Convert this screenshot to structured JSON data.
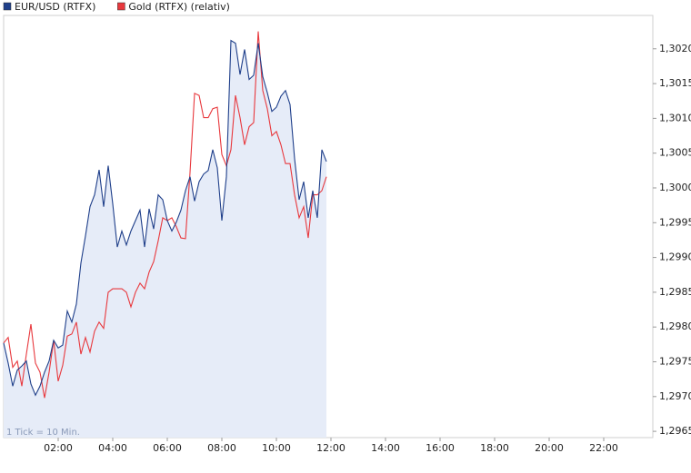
{
  "chart_data": {
    "type": "line",
    "annotation": "1 Tick = 10 Min.",
    "x": [
      0,
      10,
      20,
      30,
      40,
      50,
      60,
      70,
      80,
      90,
      100,
      110,
      120,
      130,
      140,
      150,
      160,
      170,
      180,
      190,
      200,
      210,
      220,
      230,
      240,
      250,
      260,
      270,
      280,
      290,
      300,
      310,
      320,
      330,
      340,
      350,
      360,
      370,
      380,
      390,
      400,
      410,
      420,
      430,
      440,
      450,
      460,
      470,
      480,
      490,
      500,
      510,
      520,
      530,
      540,
      550,
      560,
      570,
      580,
      590,
      600,
      610,
      620,
      630,
      640,
      650,
      660,
      670,
      680,
      690,
      700,
      710
    ],
    "xlim": [
      0,
      1428
    ],
    "xticks": [
      {
        "value": 120,
        "label": "02:00"
      },
      {
        "value": 240,
        "label": "04:00"
      },
      {
        "value": 360,
        "label": "06:00"
      },
      {
        "value": 480,
        "label": "08:00"
      },
      {
        "value": 600,
        "label": "10:00"
      },
      {
        "value": 720,
        "label": "12:00"
      },
      {
        "value": 840,
        "label": "14:00"
      },
      {
        "value": 960,
        "label": "16:00"
      },
      {
        "value": 1080,
        "label": "18:00"
      },
      {
        "value": 1200,
        "label": "20:00"
      },
      {
        "value": 1320,
        "label": "22:00"
      }
    ],
    "ylim": [
      1.29641,
      1.30248
    ],
    "yticks": [
      {
        "value": 1.2965,
        "label": "1,2965"
      },
      {
        "value": 1.297,
        "label": "1,2970"
      },
      {
        "value": 1.2975,
        "label": "1,2975"
      },
      {
        "value": 1.298,
        "label": "1,2980"
      },
      {
        "value": 1.2985,
        "label": "1,2985"
      },
      {
        "value": 1.299,
        "label": "1,2990"
      },
      {
        "value": 1.2995,
        "label": "1,2995"
      },
      {
        "value": 1.3,
        "label": "1,3000"
      },
      {
        "value": 1.3005,
        "label": "1,3005"
      },
      {
        "value": 1.301,
        "label": "1,3010"
      },
      {
        "value": 1.3015,
        "label": "1,3015"
      },
      {
        "value": 1.302,
        "label": "1,3020"
      }
    ],
    "series": [
      {
        "name": "EUR/USD (RTFX)",
        "color": "#1f3f8a",
        "fill": "#e6ecf8",
        "values": [
          1.29777,
          1.29748,
          1.29715,
          1.29738,
          1.29744,
          1.29751,
          1.29718,
          1.29702,
          1.29715,
          1.29735,
          1.29751,
          1.29781,
          1.2977,
          1.29774,
          1.29823,
          1.29807,
          1.29833,
          1.29892,
          1.29931,
          1.29973,
          1.2999,
          1.30026,
          1.29973,
          1.30032,
          1.29977,
          1.29915,
          1.29938,
          1.29918,
          1.29938,
          1.29953,
          1.29968,
          1.29915,
          1.2997,
          1.29941,
          1.2999,
          1.29983,
          1.29953,
          1.29938,
          1.29951,
          1.29968,
          1.29996,
          1.30016,
          1.29981,
          1.30009,
          1.3002,
          1.30025,
          1.30055,
          1.30029,
          1.29953,
          1.30016,
          1.30212,
          1.30208,
          1.30163,
          1.30199,
          1.30156,
          1.30162,
          1.30208,
          1.3016,
          1.30137,
          1.3011,
          1.30116,
          1.30132,
          1.3014,
          1.3012,
          1.30042,
          1.29983,
          1.30009,
          1.29957,
          1.29996,
          1.29957,
          1.30055,
          1.30038
        ]
      },
      {
        "name": "Gold (RTFX) (relativ)",
        "color": "#e8383d",
        "values": [
          1.29777,
          1.29785,
          1.29742,
          1.29751,
          1.29715,
          1.29761,
          1.29804,
          1.29748,
          1.29735,
          1.29698,
          1.29735,
          1.29781,
          1.29722,
          1.29745,
          1.29787,
          1.2979,
          1.29807,
          1.29761,
          1.29785,
          1.29764,
          1.29794,
          1.29807,
          1.29798,
          1.2985,
          1.29855,
          1.29855,
          1.29855,
          1.2985,
          1.29829,
          1.2985,
          1.29863,
          1.29855,
          1.29879,
          1.29894,
          1.29924,
          1.29957,
          1.29953,
          1.29957,
          1.29944,
          1.29928,
          1.29927,
          1.30022,
          1.30136,
          1.30133,
          1.30101,
          1.30101,
          1.30114,
          1.30116,
          1.30048,
          1.30032,
          1.30055,
          1.30133,
          1.30101,
          1.30062,
          1.30088,
          1.30094,
          1.30225,
          1.3014,
          1.30114,
          1.30075,
          1.30081,
          1.30062,
          1.30035,
          1.30035,
          1.2999,
          1.29957,
          1.29973,
          1.29928,
          1.2999,
          1.2999,
          1.29996,
          1.30016
        ]
      }
    ]
  }
}
